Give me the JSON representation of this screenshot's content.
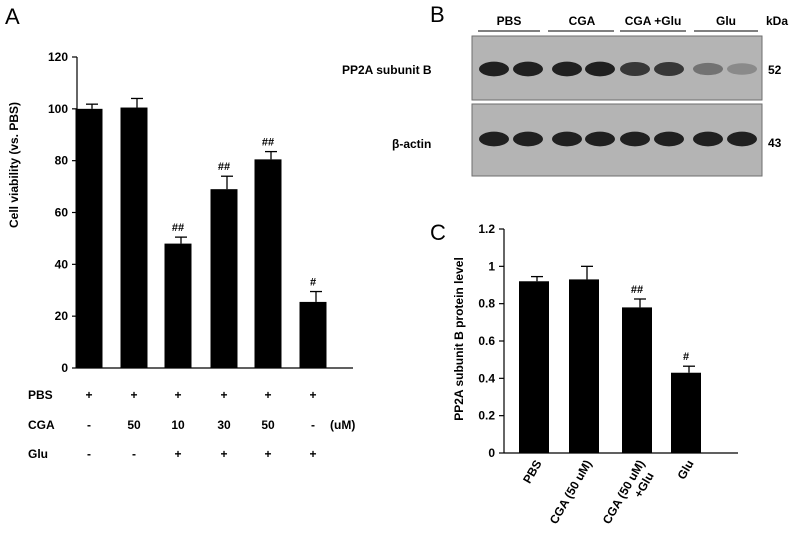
{
  "panels": {
    "a": {
      "letter": "A"
    },
    "b": {
      "letter": "B"
    },
    "c": {
      "letter": "C"
    }
  },
  "blot": {
    "kda_label": "kDa",
    "lanes": [
      "PBS",
      "CGA",
      "CGA +Glu",
      "Glu"
    ],
    "rows": [
      {
        "label": "PP2A subunit B",
        "kda": "52",
        "intensity": [
          0.95,
          0.95,
          0.95,
          0.95,
          0.85,
          0.85,
          0.6,
          0.5
        ]
      },
      {
        "label": "β-actin",
        "kda": "43",
        "intensity": [
          0.95,
          0.95,
          0.95,
          0.95,
          0.95,
          0.95,
          0.95,
          0.95
        ]
      }
    ]
  },
  "chart_data": [
    {
      "panel": "A",
      "type": "bar",
      "title": "",
      "ylabel": "Cell viability (vs. PBS)",
      "xlabel": "",
      "ylim": [
        0,
        120
      ],
      "yticks": [
        "0",
        "20",
        "40",
        "60",
        "80",
        "100",
        "120"
      ],
      "values": [
        100,
        100.5,
        48,
        69,
        80.5,
        25.5
      ],
      "errors": [
        1.8,
        3.5,
        2.5,
        5,
        3,
        4
      ],
      "significance": [
        "",
        "",
        "##",
        "##",
        "##",
        "#"
      ],
      "condition_rows": [
        {
          "label": "PBS",
          "values": [
            "+",
            "+",
            "+",
            "+",
            "+",
            "+"
          ]
        },
        {
          "label": "CGA",
          "values": [
            "-",
            "50",
            "10",
            "30",
            "50",
            "-"
          ],
          "unit": "(uM)"
        },
        {
          "label": "Glu",
          "values": [
            "-",
            "-",
            "+",
            "+",
            "+",
            "+"
          ]
        }
      ]
    },
    {
      "panel": "C",
      "type": "bar",
      "title": "",
      "ylabel": "PP2A subunit B protein level",
      "xlabel": "",
      "ylim": [
        0,
        1.2
      ],
      "yticks": [
        "0",
        "0.2",
        "0.4",
        "0.6",
        "0.8",
        "1",
        "1.2"
      ],
      "categories": [
        "PBS",
        "CGA (50 uM)",
        "CGA (50 uM)",
        "Glu"
      ],
      "category_sublines": [
        "",
        "",
        "+Glu",
        ""
      ],
      "values": [
        0.92,
        0.93,
        0.78,
        0.43
      ],
      "errors": [
        0.025,
        0.07,
        0.045,
        0.035
      ],
      "significance": [
        "",
        "",
        "##",
        "#"
      ]
    }
  ]
}
